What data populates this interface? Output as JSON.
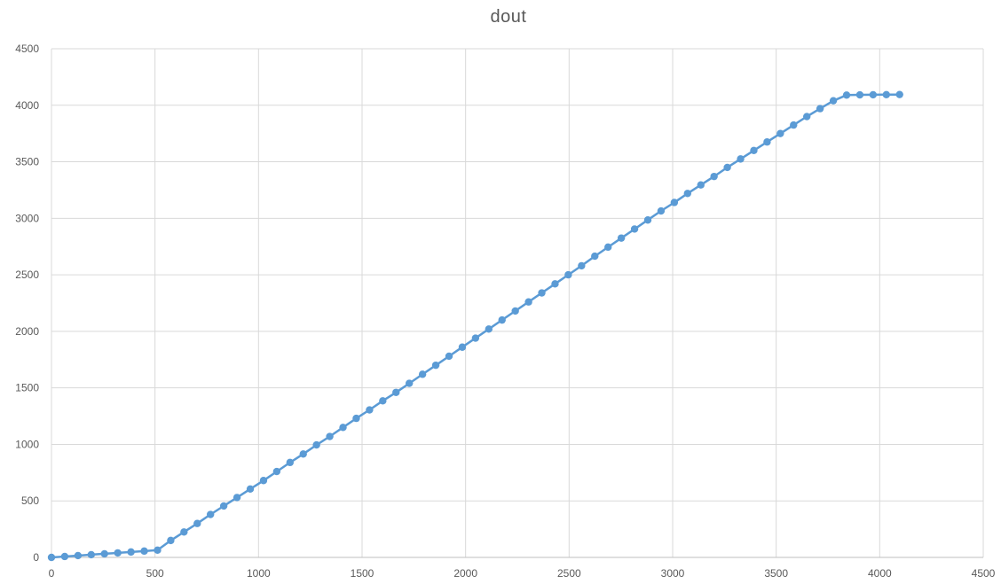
{
  "chart_data": {
    "type": "scatter",
    "title": "dout",
    "xlabel": "",
    "ylabel": "",
    "xlim": [
      0,
      4500
    ],
    "ylim": [
      0,
      4500
    ],
    "x_ticks": [
      0,
      500,
      1000,
      1500,
      2000,
      2500,
      3000,
      3500,
      4000,
      4500
    ],
    "y_ticks": [
      0,
      500,
      1000,
      1500,
      2000,
      2500,
      3000,
      3500,
      4000,
      4500
    ],
    "grid": true,
    "legend": "none",
    "line_color": "#5b9bd5",
    "grid_color": "#d9d9d9",
    "series": [
      {
        "x": [
          0,
          64,
          128,
          192,
          256,
          320,
          384,
          448,
          512,
          576,
          640,
          704,
          768,
          832,
          896,
          960,
          1024,
          1088,
          1152,
          1216,
          1280,
          1344,
          1408,
          1472,
          1536,
          1600,
          1664,
          1728,
          1792,
          1856,
          1920,
          1984,
          2048,
          2112,
          2176,
          2240,
          2304,
          2368,
          2432,
          2496,
          2560,
          2624,
          2688,
          2752,
          2816,
          2880,
          2944,
          3008,
          3072,
          3136,
          3200,
          3264,
          3328,
          3392,
          3456,
          3520,
          3584,
          3648,
          3712,
          3776,
          3840,
          3904,
          3968,
          4032,
          4096
        ],
        "y": [
          0,
          8,
          16,
          24,
          32,
          40,
          48,
          56,
          64,
          150,
          225,
          300,
          380,
          455,
          530,
          605,
          680,
          760,
          840,
          915,
          995,
          1070,
          1150,
          1230,
          1305,
          1385,
          1460,
          1540,
          1620,
          1700,
          1780,
          1860,
          1940,
          2020,
          2100,
          2180,
          2260,
          2340,
          2420,
          2500,
          2580,
          2665,
          2745,
          2825,
          2905,
          2985,
          3065,
          3140,
          3220,
          3295,
          3370,
          3450,
          3525,
          3600,
          3675,
          3750,
          3825,
          3900,
          3970,
          4040,
          4090,
          4092,
          4093,
          4094,
          4095
        ]
      }
    ]
  }
}
